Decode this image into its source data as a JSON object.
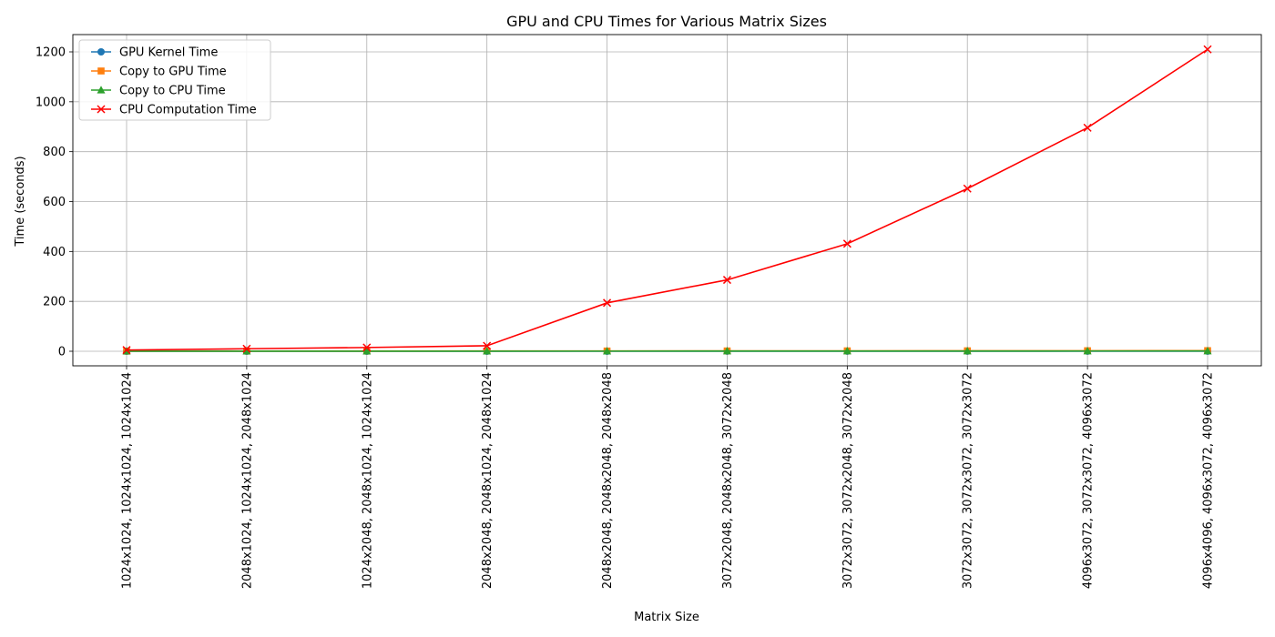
{
  "chart_data": {
    "type": "line",
    "title": "GPU and CPU Times for Various Matrix Sizes",
    "xlabel": "Matrix Size",
    "ylabel": "Time (seconds)",
    "ylim": [
      -60,
      1270
    ],
    "yticks": [
      0,
      200,
      400,
      600,
      800,
      1000,
      1200
    ],
    "grid": true,
    "legend_position": "top-left",
    "categories": [
      "1024x1024, 1024x1024, 1024x1024",
      "2048x1024, 1024x1024, 2048x1024",
      "1024x2048, 2048x1024, 1024x1024",
      "2048x2048, 2048x1024, 2048x1024",
      "2048x2048, 2048x2048, 2048x2048",
      "3072x2048, 2048x2048, 3072x2048",
      "3072x3072, 3072x2048, 3072x2048",
      "3072x3072, 3072x3072, 3072x3072",
      "4096x3072, 3072x3072, 4096x3072",
      "4096x4096, 4096x3072, 4096x3072"
    ],
    "series": [
      {
        "name": "GPU Kernel Time",
        "color": "#1f77b4",
        "marker": "circle",
        "values": [
          0.01,
          0.02,
          0.02,
          0.03,
          0.05,
          0.07,
          0.09,
          0.12,
          0.15,
          0.2
        ]
      },
      {
        "name": "Copy to GPU Time",
        "color": "#ff7f0e",
        "marker": "square",
        "values": [
          0.5,
          0.8,
          0.8,
          1.0,
          1.2,
          1.5,
          1.8,
          2.0,
          2.3,
          2.6
        ]
      },
      {
        "name": "Copy to CPU Time",
        "color": "#2ca02c",
        "marker": "triangle",
        "values": [
          0.2,
          0.3,
          0.3,
          0.4,
          0.5,
          0.6,
          0.7,
          0.8,
          0.9,
          1.0
        ]
      },
      {
        "name": "CPU Computation Time",
        "color": "#ff0000",
        "marker": "x",
        "values": [
          5,
          10,
          15,
          22,
          194,
          286,
          431,
          652,
          896,
          1210
        ]
      }
    ]
  }
}
